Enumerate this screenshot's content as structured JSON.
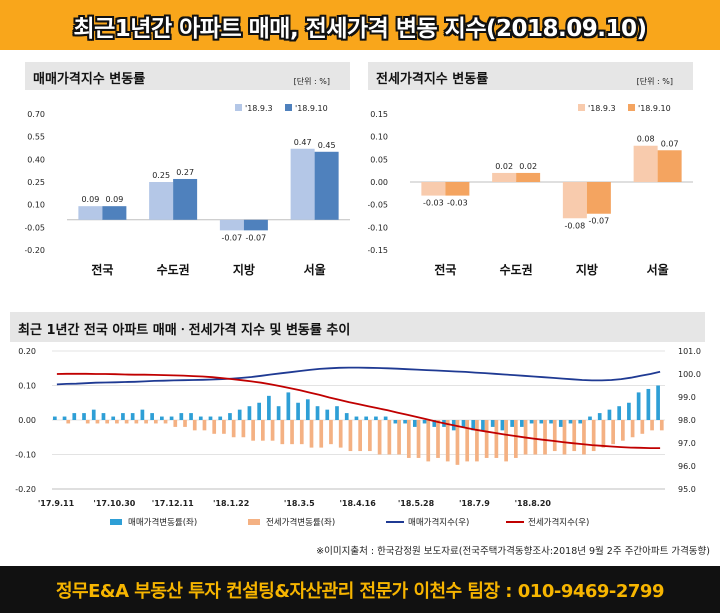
{
  "header": {
    "title": "최근1년간 아파트 매매, 전세가격 변동 지수(2018.09.10)"
  },
  "colors": {
    "banner": "#f9a61b",
    "sale_light": "#b4c7e7",
    "sale_dark": "#4f81bd",
    "rent_light": "#f8cbad",
    "rent_dark": "#f4a460",
    "bar_blue": "#2e9fd6",
    "bar_orange": "#f4b183",
    "line_blue": "#1f3a93",
    "line_red": "#c00000"
  },
  "panel_sale": {
    "title": "매매가격지수 변동률",
    "unit": "[단위 : %]",
    "chart_data": {
      "type": "bar",
      "categories": [
        "전국",
        "수도권",
        "지방",
        "서울"
      ],
      "series": [
        {
          "name": "'18.9.3",
          "values": [
            0.09,
            0.25,
            -0.07,
            0.47
          ]
        },
        {
          "name": "'18.9.10",
          "values": [
            0.09,
            0.27,
            -0.07,
            0.45
          ]
        }
      ],
      "labels": [
        [
          "0.09",
          "0.25",
          "-0.07",
          "0.47"
        ],
        [
          "0.09",
          "0.27",
          "-0.07",
          "0.45"
        ]
      ],
      "yticks": [
        "0.70",
        "0.55",
        "0.40",
        "0.25",
        "0.10",
        "-0.05",
        "-0.20"
      ],
      "ylim": [
        -0.2,
        0.7
      ]
    }
  },
  "panel_rent": {
    "title": "전세가격지수 변동률",
    "unit": "[단위 : %]",
    "chart_data": {
      "type": "bar",
      "categories": [
        "전국",
        "수도권",
        "지방",
        "서울"
      ],
      "series": [
        {
          "name": "'18.9.3",
          "values": [
            -0.03,
            0.02,
            -0.08,
            0.08
          ]
        },
        {
          "name": "'18.9.10",
          "values": [
            -0.03,
            0.02,
            -0.07,
            0.07
          ]
        }
      ],
      "labels": [
        [
          "-0.03",
          "0.02",
          "-0.08",
          "0.08"
        ],
        [
          "-0.03",
          "0.02",
          "-0.07",
          "0.07"
        ]
      ],
      "yticks": [
        "0.15",
        "0.10",
        "0.05",
        "0.00",
        "-0.05",
        "-0.10",
        "-0.15"
      ],
      "ylim": [
        -0.15,
        0.15
      ]
    }
  },
  "panel_trend": {
    "title": "최근 1년간 전국 아파트 매매ㆍ전세가격 지수 및 변동률 추이",
    "chart_data": {
      "type": "bar",
      "x_ticks": [
        "'17.9.11",
        "'17.10.30",
        "'17.12.11",
        "'18.1.22",
        "'18.3.5",
        "'18.4.16",
        "'18.5.28",
        "'18.7.9",
        "'18.8.20"
      ],
      "y_left_ticks": [
        "0.20",
        "0.10",
        "0.00",
        "-0.10",
        "-0.20"
      ],
      "y_right_ticks": [
        "101.0",
        "100.0",
        "99.0",
        "98.0",
        "97.0",
        "96.0",
        "95.0"
      ],
      "y_left_lim": [
        -0.2,
        0.2
      ],
      "y_right_lim": [
        95.0,
        101.0
      ],
      "series": [
        {
          "name": "매매가격변동률(좌)",
          "values": [
            0.01,
            0.01,
            0.02,
            0.02,
            0.03,
            0.02,
            0.01,
            0.02,
            0.02,
            0.03,
            0.02,
            0.01,
            0.01,
            0.02,
            0.02,
            0.01,
            0.01,
            0.01,
            0.02,
            0.03,
            0.04,
            0.05,
            0.07,
            0.04,
            0.08,
            0.05,
            0.06,
            0.04,
            0.03,
            0.04,
            0.02,
            0.01,
            0.01,
            0.01,
            0.01,
            -0.01,
            -0.01,
            -0.02,
            -0.01,
            -0.02,
            -0.02,
            -0.03,
            -0.02,
            -0.03,
            -0.03,
            -0.02,
            -0.03,
            -0.02,
            -0.02,
            -0.01,
            -0.01,
            -0.01,
            -0.02,
            -0.01,
            -0.01,
            0.01,
            0.02,
            0.03,
            0.04,
            0.05,
            0.08,
            0.09,
            0.1
          ]
        },
        {
          "name": "전세가격변동률(좌)",
          "values": [
            0.0,
            -0.01,
            0.0,
            -0.01,
            -0.01,
            -0.01,
            -0.01,
            -0.01,
            -0.01,
            -0.01,
            -0.01,
            -0.01,
            -0.02,
            -0.02,
            -0.03,
            -0.03,
            -0.04,
            -0.04,
            -0.05,
            -0.05,
            -0.06,
            -0.06,
            -0.06,
            -0.07,
            -0.07,
            -0.07,
            -0.08,
            -0.08,
            -0.07,
            -0.08,
            -0.09,
            -0.09,
            -0.09,
            -0.1,
            -0.1,
            -0.1,
            -0.11,
            -0.11,
            -0.12,
            -0.11,
            -0.12,
            -0.13,
            -0.12,
            -0.12,
            -0.11,
            -0.11,
            -0.12,
            -0.11,
            -0.1,
            -0.1,
            -0.1,
            -0.09,
            -0.1,
            -0.09,
            -0.1,
            -0.09,
            -0.08,
            -0.07,
            -0.06,
            -0.05,
            -0.04,
            -0.03,
            -0.03
          ]
        },
        {
          "name": "매매가격지수(우)",
          "values": [
            99.55,
            99.57,
            99.58,
            99.6,
            99.62,
            99.63,
            99.64,
            99.65,
            99.66,
            99.68,
            99.7,
            99.71,
            99.72,
            99.73,
            99.74,
            99.75,
            99.76,
            99.78,
            99.8,
            99.83,
            99.87,
            99.92,
            99.98,
            100.03,
            100.08,
            100.13,
            100.18,
            100.22,
            100.25,
            100.27,
            100.28,
            100.28,
            100.27,
            100.26,
            100.25,
            100.23,
            100.21,
            100.19,
            100.17,
            100.15,
            100.13,
            100.11,
            100.09,
            100.06,
            100.04,
            100.01,
            99.98,
            99.95,
            99.92,
            99.89,
            99.86,
            99.83,
            99.8,
            99.77,
            99.74,
            99.72,
            99.72,
            99.74,
            99.78,
            99.84,
            99.92,
            100.0,
            100.1
          ]
        },
        {
          "name": "전세가격지수(우)",
          "values": [
            100.0,
            100.01,
            100.01,
            100.01,
            100.0,
            100.0,
            99.99,
            99.98,
            99.97,
            99.97,
            99.96,
            99.95,
            99.94,
            99.93,
            99.91,
            99.89,
            99.86,
            99.82,
            99.78,
            99.73,
            99.68,
            99.62,
            99.55,
            99.47,
            99.38,
            99.29,
            99.19,
            99.09,
            98.98,
            98.88,
            98.78,
            98.69,
            98.6,
            98.51,
            98.42,
            98.32,
            98.23,
            98.13,
            98.03,
            97.93,
            97.84,
            97.75,
            97.66,
            97.58,
            97.51,
            97.44,
            97.37,
            97.31,
            97.25,
            97.19,
            97.14,
            97.09,
            97.04,
            96.99,
            96.95,
            96.91,
            96.88,
            96.85,
            96.82,
            96.8,
            96.79,
            96.78,
            96.78
          ]
        }
      ],
      "legend": [
        "매매가격변동률(좌)",
        "전세가격변동률(좌)",
        "매매가격지수(우)",
        "전세가격지수(우)"
      ]
    }
  },
  "source": "※이미지출처 : 한국감정원 보도자료(전국주택가격동향조사:2018년 9월 2주 주간아파트 가격동향)",
  "footer": {
    "text": "정무E&A 부동산 투자 컨설팅&자산관리 전문가 이천수 팀장 : 010-9469-2799"
  }
}
